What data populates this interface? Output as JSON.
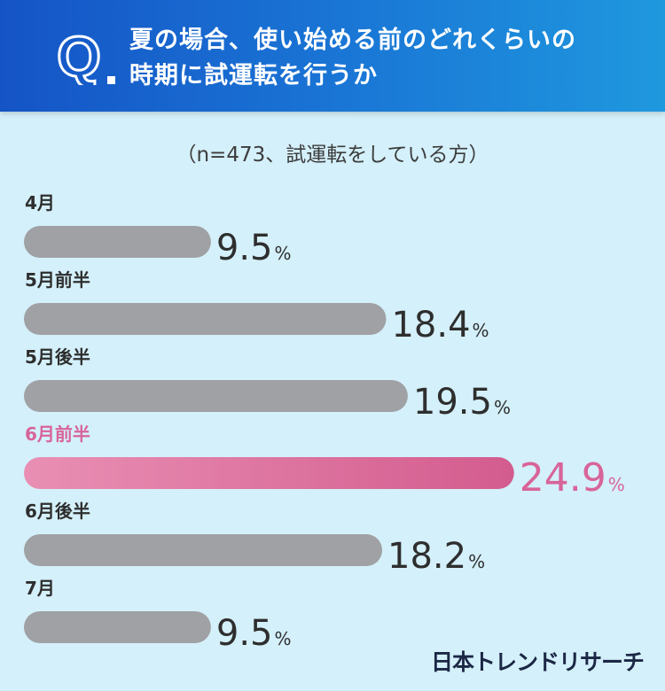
{
  "header": {
    "q_letter": "Q",
    "title_line1": "夏の場合、使い始める前のどれくらいの",
    "title_line2": "時期に試運転を行うか"
  },
  "subtitle": "（n=473、試運転をしている方）",
  "chart_data": {
    "type": "bar",
    "orientation": "horizontal",
    "categories": [
      "4月",
      "5月前半",
      "5月後半",
      "6月前半",
      "6月後半",
      "7月"
    ],
    "values": [
      9.5,
      18.4,
      19.5,
      24.9,
      18.2,
      9.5
    ],
    "value_labels": [
      "9.5",
      "18.4",
      "19.5",
      "24.9",
      "18.2",
      "9.5"
    ],
    "unit": "%",
    "highlight_index": 3,
    "colors": {
      "bar": "#a0a1a5",
      "highlight_start": "#e98fb4",
      "highlight_end": "#d35c8e",
      "highlight_text": "#d8649a",
      "text": "#2e2e2e"
    }
  },
  "logo": "日本トレンドリサーチ"
}
